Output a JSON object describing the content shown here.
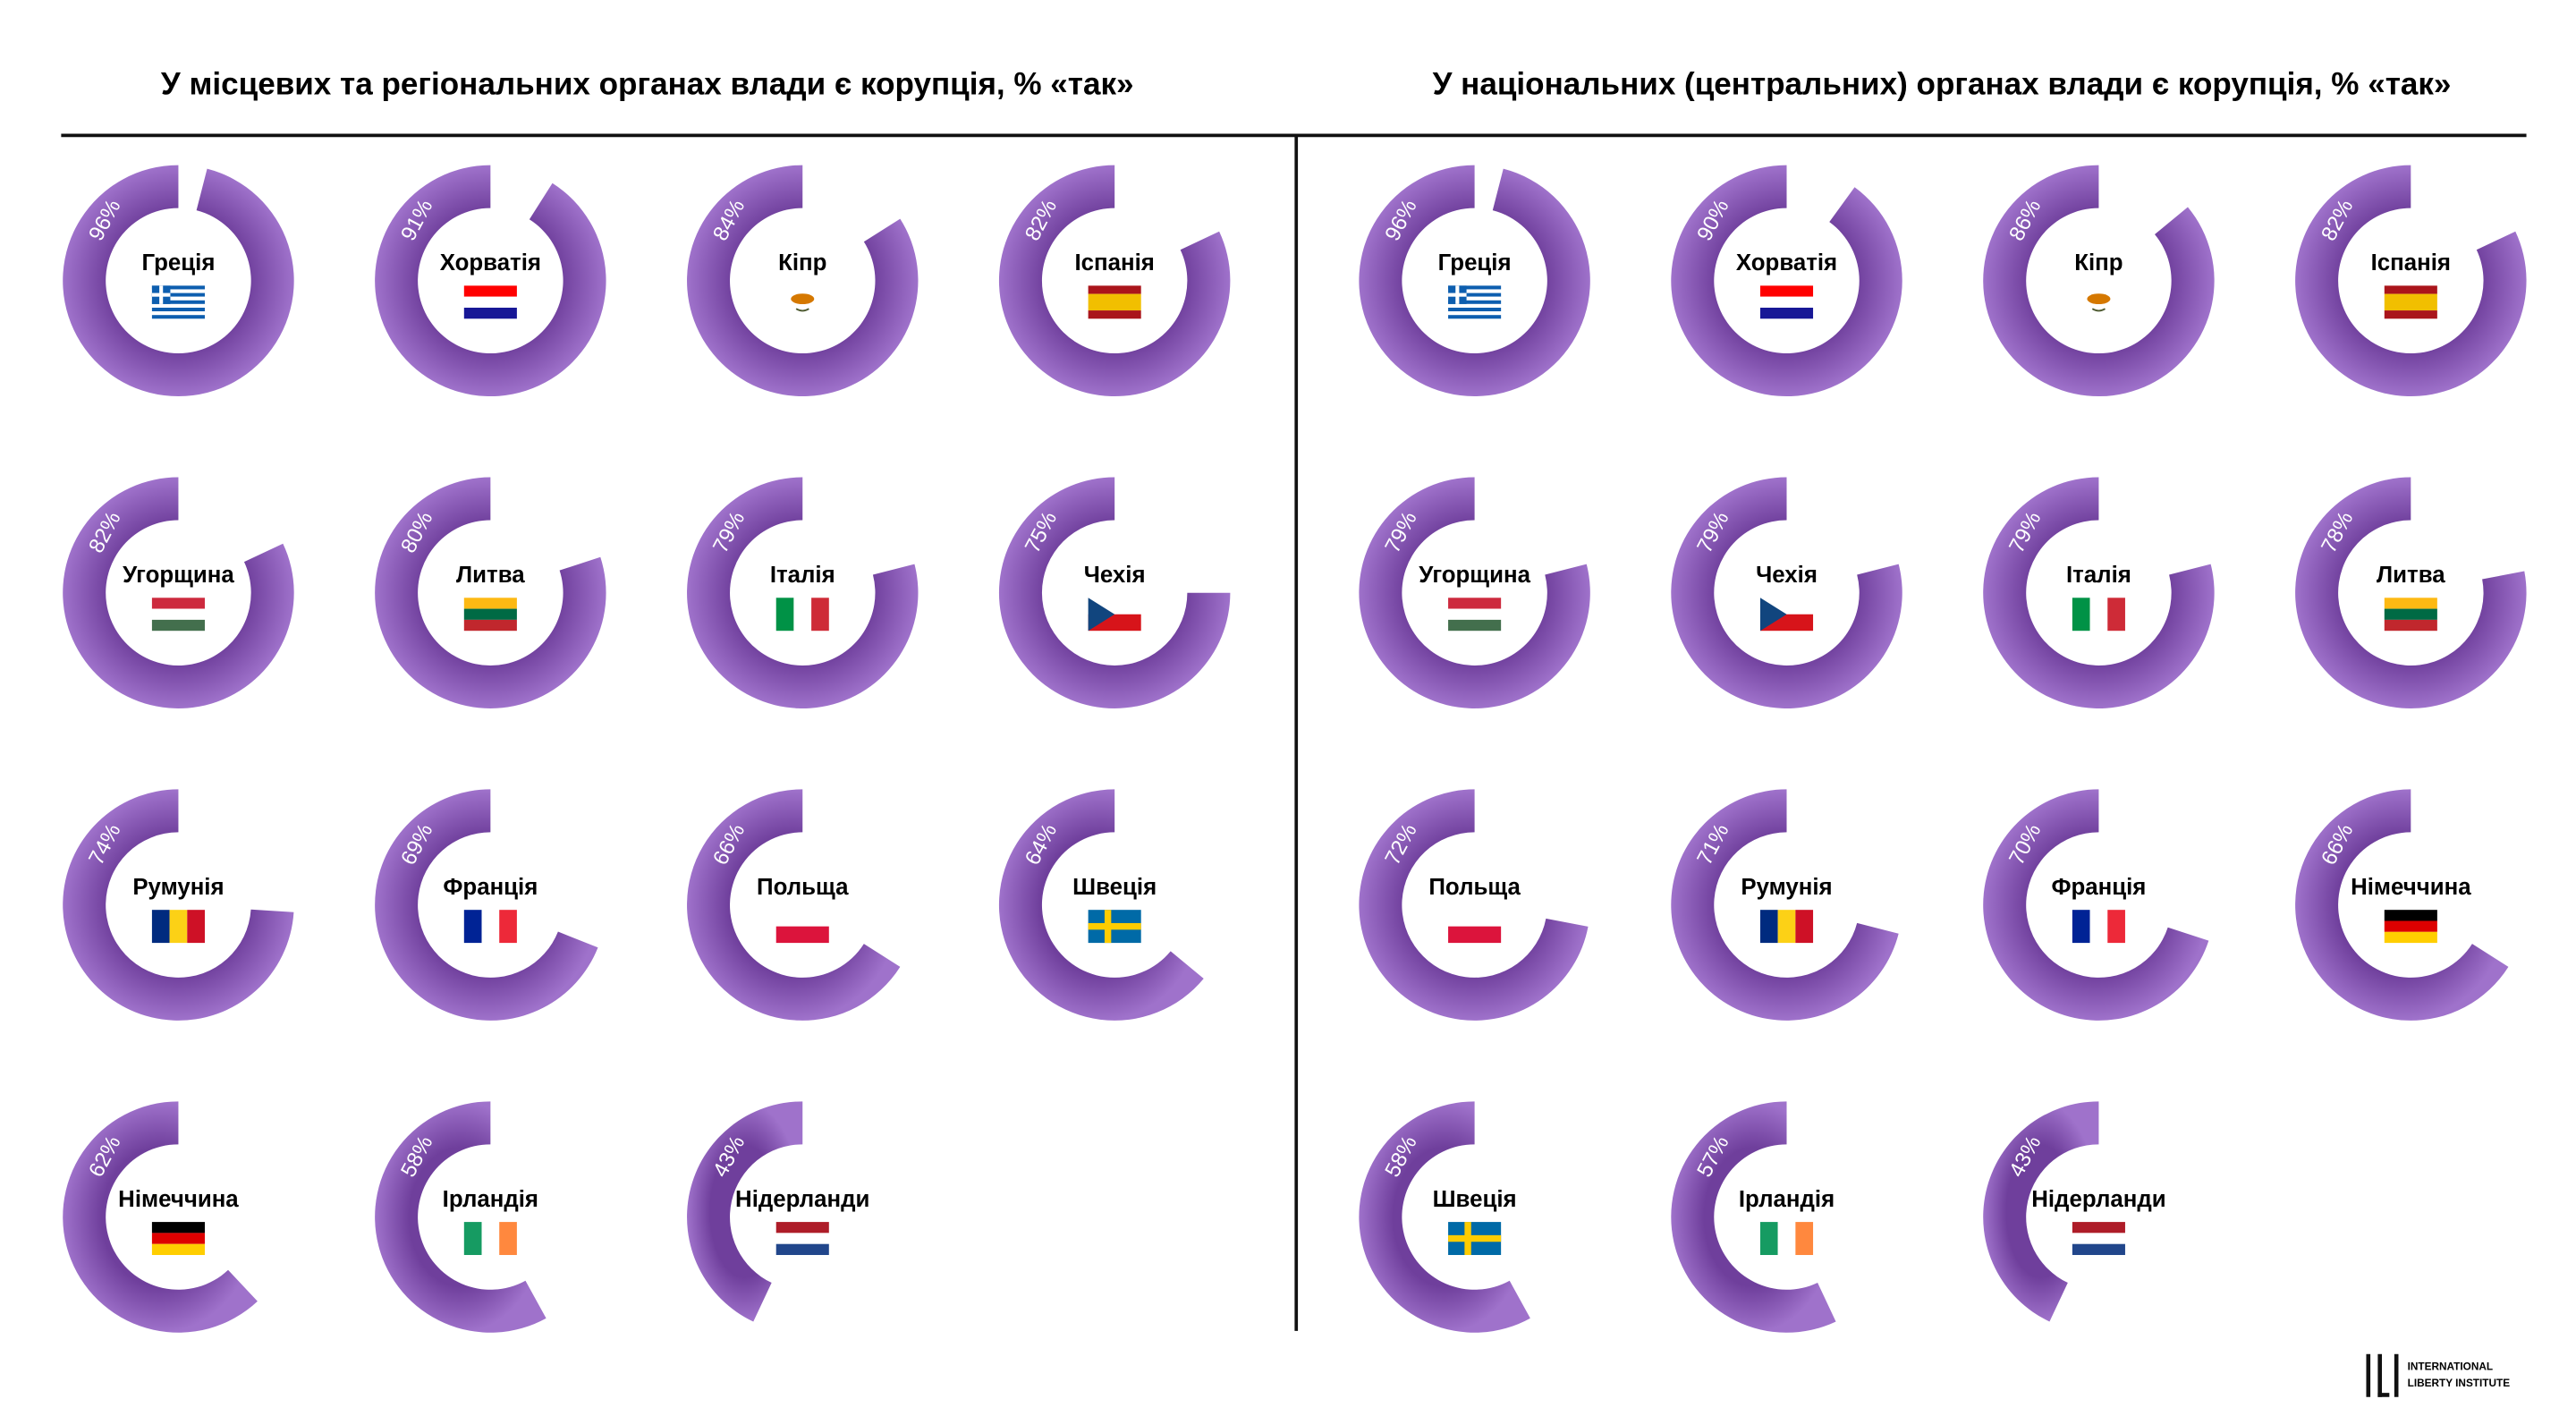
{
  "chart_data": [
    {
      "type": "donut",
      "title": "У місцевих та регіональних органах влади є корупція, % «так»",
      "categories": [
        "Греція",
        "Хорватія",
        "Кіпр",
        "Іспанія",
        "Угорщина",
        "Литва",
        "Італія",
        "Чехія",
        "Румунія",
        "Франція",
        "Польща",
        "Швеція",
        "Німеччина",
        "Ірландія",
        "Нідерланди"
      ],
      "values": [
        96,
        91,
        84,
        82,
        82,
        80,
        79,
        75,
        74,
        69,
        66,
        64,
        62,
        58,
        43
      ],
      "value_labels": [
        "96%",
        "91%",
        "84%",
        "82%",
        "82%",
        "80%",
        "79%",
        "75%",
        "74%",
        "69%",
        "66%",
        "64%",
        "62%",
        "58%",
        "43%"
      ],
      "color": "#8a5cb6"
    },
    {
      "type": "donut",
      "title": "У національних (центральних) органах влади є корупція, % «так»",
      "categories": [
        "Греція",
        "Хорватія",
        "Кіпр",
        "Іспанія",
        "Угорщина",
        "Чехія",
        "Італія",
        "Литва",
        "Польща",
        "Румунія",
        "Франція",
        "Німеччина",
        "Швеція",
        "Ірландія",
        "Нідерланди"
      ],
      "values": [
        96,
        90,
        86,
        82,
        79,
        79,
        79,
        78,
        72,
        71,
        70,
        66,
        58,
        57,
        43
      ],
      "value_labels": [
        "96%",
        "90%",
        "86%",
        "82%",
        "79%",
        "79%",
        "79%",
        "78%",
        "72%",
        "71%",
        "70%",
        "66%",
        "58%",
        "57%",
        "43%"
      ],
      "color": "#8a5cb6"
    }
  ],
  "logo": {
    "lines": [
      "INTERNATIONAL",
      "LIBERTY INSTITUTE"
    ]
  }
}
